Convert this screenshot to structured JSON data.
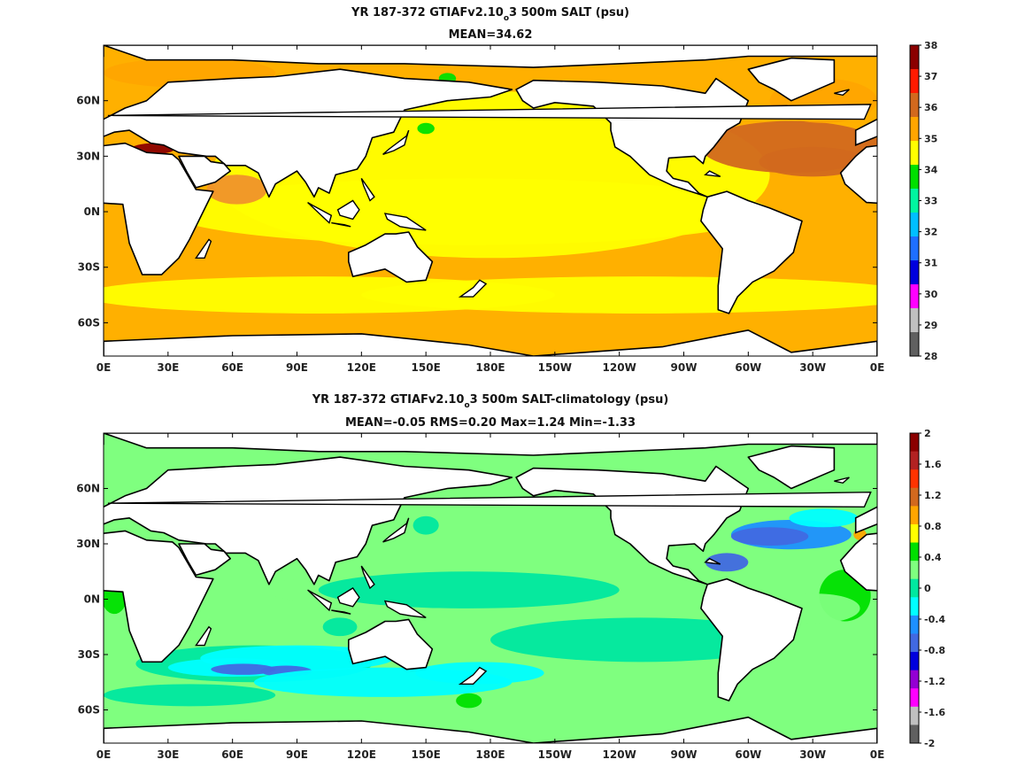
{
  "chart_data": [
    {
      "type": "heatmap",
      "title": "YR 187-372 GTIAFv2.10",
      "title_subscript": "o",
      "title_suffix": "3 500m SALT (psu)",
      "subtitle": "MEAN=34.62",
      "x_tick_labels": [
        "0E",
        "30E",
        "60E",
        "90E",
        "120E",
        "150E",
        "180E",
        "150W",
        "120W",
        "90W",
        "60W",
        "30W",
        "0E"
      ],
      "y_tick_labels": [
        "60N",
        "30N",
        "0N",
        "30S",
        "60S"
      ],
      "xlim": [
        0,
        360
      ],
      "ylim": [
        -78,
        90
      ],
      "y_ticks": [
        60,
        30,
        0,
        -30,
        -60
      ],
      "colorbar_ticks": [
        "38",
        "37",
        "36",
        "35",
        "34",
        "33",
        "32",
        "31",
        "30",
        "29",
        "28"
      ],
      "colorbar_colors": [
        "#8b0000",
        "#ff1a00",
        "#d2691e",
        "#ffa500",
        "#ffff00",
        "#00e000",
        "#00f5a0",
        "#00bfff",
        "#1e6fff",
        "#0000dd",
        "#ff00ff",
        "#c0c0c0",
        "#606060"
      ],
      "mean": 34.62
    },
    {
      "type": "heatmap",
      "title": "YR 187-372 GTIAFv2.10",
      "title_subscript": "o",
      "title_suffix": "3 500m SALT-climatology (psu)",
      "subtitle": "MEAN=-0.05   RMS=0.20   Max=1.24   Min=-1.33",
      "x_tick_labels": [
        "0E",
        "30E",
        "60E",
        "90E",
        "120E",
        "150E",
        "180E",
        "150W",
        "120W",
        "90W",
        "60W",
        "30W",
        "0E"
      ],
      "y_tick_labels": [
        "60N",
        "30N",
        "0N",
        "30S",
        "60S"
      ],
      "xlim": [
        0,
        360
      ],
      "ylim": [
        -78,
        90
      ],
      "y_ticks": [
        60,
        30,
        0,
        -30,
        -60
      ],
      "colorbar_ticks": [
        "2",
        "1.6",
        "1.2",
        "0.8",
        "0.4",
        "0",
        "-0.4",
        "-0.8",
        "-1.2",
        "-1.6",
        "-2"
      ],
      "colorbar_colors": [
        "#8b0000",
        "#b22222",
        "#ff3300",
        "#d2691e",
        "#ffa500",
        "#ffff00",
        "#00e000",
        "#7fff7f",
        "#00e8a0",
        "#00ffff",
        "#1e90ff",
        "#4169e1",
        "#0000dd",
        "#9400d3",
        "#ff00ff",
        "#c0c0c0",
        "#606060"
      ],
      "mean": -0.05,
      "rms": 0.2,
      "max": 1.24,
      "min": -1.33
    }
  ]
}
